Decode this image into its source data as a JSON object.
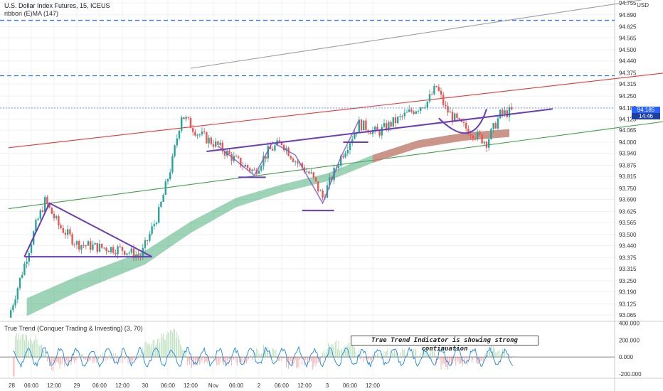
{
  "header": {
    "title": "U.S. Dollar Index Futures, 15, ICEUS",
    "ribbon": "ribbon (E)MA (147)",
    "currency": "USD"
  },
  "oscillator": {
    "title": "True Trend (Conquer Trading & Investing) (3, 70)",
    "annotation": "True Trend Indicator is showing strong continuation",
    "y_ticks": [
      "400.000",
      "200.000",
      "0.000",
      "-200.000"
    ]
  },
  "price_badge": {
    "price": "94.185",
    "time": "14:46"
  },
  "colors": {
    "up_candle": "#26a69a",
    "down_candle": "#ef5350",
    "pattern_lines": "#6a3db8",
    "channel_red": "#e53935",
    "channel_green": "#43a047",
    "channel_gray": "#9e9e9e",
    "dashed_levels": "#2979ff",
    "ribbon_green": "#4caf7a",
    "ribbon_red": "#e57373",
    "price_badge": "#2962ff"
  },
  "chart_data": {
    "type": "candlestick",
    "title": "U.S. Dollar Index Futures, 15, ICEUS",
    "y_ticks": [
      "94.755",
      "94.690",
      "94.625",
      "94.565",
      "94.500",
      "94.440",
      "94.375",
      "94.315",
      "94.250",
      "94.185",
      "94.125",
      "94.065",
      "94.000",
      "93.940",
      "93.875",
      "93.815",
      "93.750",
      "93.690",
      "93.625",
      "93.565",
      "93.500",
      "93.440",
      "93.375",
      "93.315",
      "93.250",
      "93.190",
      "93.125",
      "93.065"
    ],
    "x_ticks": [
      "28",
      "06:00",
      "12:00",
      "29",
      "06:00",
      "12:00",
      "30",
      "06:00",
      "12:00",
      "Nov",
      "06:00",
      "2",
      "06:00",
      "12:00",
      "3",
      "06:00",
      "12:00"
    ],
    "ylim": [
      93.03,
      94.77
    ],
    "last_price": 94.185,
    "close_path": [
      [
        0,
        93.05
      ],
      [
        0.8,
        93.38
      ],
      [
        1.2,
        93.55
      ],
      [
        1.6,
        93.68
      ],
      [
        2.2,
        93.55
      ],
      [
        3,
        93.45
      ],
      [
        4,
        93.43
      ],
      [
        5,
        93.42
      ],
      [
        5.8,
        93.38
      ],
      [
        6.6,
        93.62
      ],
      [
        7.2,
        93.9
      ],
      [
        7.6,
        94.15
      ],
      [
        8.3,
        94.05
      ],
      [
        9.2,
        93.98
      ],
      [
        10,
        93.9
      ],
      [
        10.8,
        93.84
      ],
      [
        11.4,
        93.95
      ],
      [
        12,
        94.0
      ],
      [
        12.6,
        93.9
      ],
      [
        13.3,
        93.82
      ],
      [
        13.8,
        93.7
      ],
      [
        14.6,
        93.92
      ],
      [
        15.4,
        94.1
      ],
      [
        16.2,
        94.05
      ],
      [
        16.8,
        94.1
      ],
      [
        17.6,
        94.16
      ],
      [
        18.4,
        94.22
      ],
      [
        18.8,
        94.3
      ],
      [
        19.2,
        94.18
      ],
      [
        19.8,
        94.1
      ],
      [
        20.4,
        94.05
      ],
      [
        21,
        94.0
      ],
      [
        21.6,
        94.15
      ],
      [
        22.2,
        94.17
      ]
    ],
    "ribbon_ma": [
      [
        0.8,
        93.07
      ],
      [
        3,
        93.2
      ],
      [
        6,
        93.35
      ],
      [
        8,
        93.52
      ],
      [
        10,
        93.66
      ],
      [
        12,
        93.74
      ],
      [
        14,
        93.8
      ],
      [
        16,
        93.9
      ],
      [
        18,
        93.98
      ],
      [
        20,
        94.02
      ],
      [
        22,
        94.04
      ]
    ],
    "horizontal_levels": [
      94.66,
      94.36
    ],
    "channel_lines": {
      "gray": [
        [
          8.0,
          94.4
        ],
        [
          27.8,
          94.77
        ]
      ],
      "red": [
        [
          0,
          93.97
        ],
        [
          29.9,
          94.39
        ]
      ],
      "green": [
        [
          0,
          93.64
        ],
        [
          29.9,
          94.13
        ]
      ]
    },
    "patterns": {
      "triangle": [
        [
          0.7,
          93.38
        ],
        [
          1.8,
          93.67
        ],
        [
          6.3,
          93.38
        ]
      ],
      "inverse_head_shoulders_neckline": [
        [
          8.7,
          93.95
        ],
        [
          23.9,
          94.18
        ]
      ],
      "cup": [
        [
          18.9,
          94.13
        ],
        [
          20.4,
          94.0
        ],
        [
          21.0,
          94.18
        ]
      ]
    },
    "oscillator": {
      "ylim": [
        -250,
        420
      ],
      "zero_line": 0
    }
  }
}
